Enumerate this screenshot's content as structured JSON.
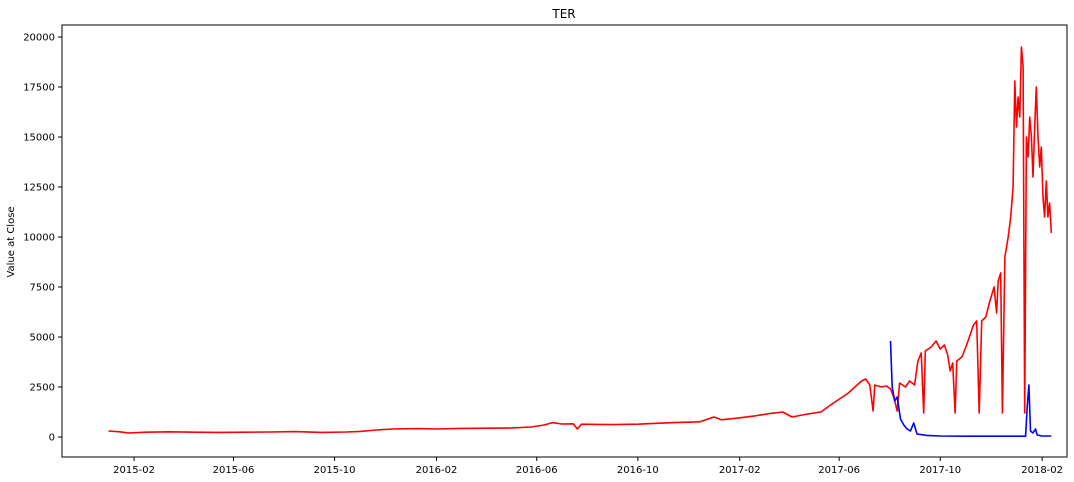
{
  "chart_data": {
    "type": "line",
    "title": "TER",
    "xlabel": "",
    "ylabel": "Value at Close",
    "x_range": [
      "2014-11-06",
      "2018-03-03"
    ],
    "ylim": [
      -1000,
      20600
    ],
    "x_ticks": [
      "2015-02",
      "2015-06",
      "2015-10",
      "2016-02",
      "2016-06",
      "2016-10",
      "2017-02",
      "2017-06",
      "2017-10",
      "2018-02"
    ],
    "y_ticks": [
      0,
      2500,
      5000,
      7500,
      10000,
      12500,
      15000,
      17500,
      20000
    ],
    "grid": false,
    "legend": false,
    "series": [
      {
        "color": "#ff0000",
        "points": [
          [
            "2015-01-01",
            300
          ],
          [
            "2015-01-15",
            260
          ],
          [
            "2015-01-25",
            200
          ],
          [
            "2015-02-15",
            240
          ],
          [
            "2015-03-15",
            260
          ],
          [
            "2015-04-15",
            240
          ],
          [
            "2015-05-15",
            230
          ],
          [
            "2015-06-15",
            240
          ],
          [
            "2015-07-15",
            250
          ],
          [
            "2015-08-15",
            270
          ],
          [
            "2015-09-15",
            230
          ],
          [
            "2015-10-15",
            250
          ],
          [
            "2015-11-01",
            280
          ],
          [
            "2015-11-20",
            350
          ],
          [
            "2015-12-10",
            400
          ],
          [
            "2016-01-10",
            420
          ],
          [
            "2016-02-01",
            400
          ],
          [
            "2016-03-01",
            430
          ],
          [
            "2016-04-01",
            440
          ],
          [
            "2016-05-01",
            450
          ],
          [
            "2016-05-25",
            500
          ],
          [
            "2016-06-10",
            600
          ],
          [
            "2016-06-20",
            720
          ],
          [
            "2016-07-01",
            650
          ],
          [
            "2016-07-15",
            660
          ],
          [
            "2016-07-20",
            400
          ],
          [
            "2016-07-25",
            640
          ],
          [
            "2016-08-15",
            630
          ],
          [
            "2016-09-01",
            620
          ],
          [
            "2016-10-01",
            640
          ],
          [
            "2016-10-20",
            680
          ],
          [
            "2016-11-15",
            720
          ],
          [
            "2016-12-15",
            760
          ],
          [
            "2017-01-01",
            1000
          ],
          [
            "2017-01-10",
            860
          ],
          [
            "2017-02-01",
            960
          ],
          [
            "2017-02-20",
            1060
          ],
          [
            "2017-03-10",
            1180
          ],
          [
            "2017-03-25",
            1250
          ],
          [
            "2017-04-05",
            1000
          ],
          [
            "2017-04-20",
            1120
          ],
          [
            "2017-05-10",
            1250
          ],
          [
            "2017-05-25",
            1700
          ],
          [
            "2017-06-05",
            2000
          ],
          [
            "2017-06-12",
            2200
          ],
          [
            "2017-06-20",
            2500
          ],
          [
            "2017-06-28",
            2800
          ],
          [
            "2017-07-03",
            2900
          ],
          [
            "2017-07-08",
            2600
          ],
          [
            "2017-07-12",
            1300
          ],
          [
            "2017-07-14",
            2600
          ],
          [
            "2017-07-22",
            2500
          ],
          [
            "2017-07-28",
            2550
          ],
          [
            "2017-08-02",
            2400
          ],
          [
            "2017-08-06",
            2000
          ],
          [
            "2017-08-10",
            1300
          ],
          [
            "2017-08-13",
            2700
          ],
          [
            "2017-08-20",
            2500
          ],
          [
            "2017-08-25",
            2800
          ],
          [
            "2017-08-31",
            2600
          ],
          [
            "2017-09-04",
            3800
          ],
          [
            "2017-09-08",
            4200
          ],
          [
            "2017-09-11",
            1200
          ],
          [
            "2017-09-13",
            4300
          ],
          [
            "2017-09-20",
            4500
          ],
          [
            "2017-09-26",
            4800
          ],
          [
            "2017-10-01",
            4400
          ],
          [
            "2017-10-06",
            4600
          ],
          [
            "2017-10-10",
            4100
          ],
          [
            "2017-10-13",
            3300
          ],
          [
            "2017-10-16",
            3700
          ],
          [
            "2017-10-19",
            1200
          ],
          [
            "2017-10-21",
            3800
          ],
          [
            "2017-10-27",
            4000
          ],
          [
            "2017-11-01",
            4500
          ],
          [
            "2017-11-06",
            5100
          ],
          [
            "2017-11-10",
            5600
          ],
          [
            "2017-11-14",
            5800
          ],
          [
            "2017-11-17",
            1200
          ],
          [
            "2017-11-20",
            5800
          ],
          [
            "2017-11-25",
            6000
          ],
          [
            "2017-11-30",
            6800
          ],
          [
            "2017-12-05",
            7500
          ],
          [
            "2017-12-08",
            6200
          ],
          [
            "2017-12-10",
            7800
          ],
          [
            "2017-12-13",
            8200
          ],
          [
            "2017-12-15",
            1200
          ],
          [
            "2017-12-18",
            9000
          ],
          [
            "2017-12-22",
            10000
          ],
          [
            "2017-12-25",
            11000
          ],
          [
            "2017-12-28",
            12500
          ],
          [
            "2017-12-30",
            17800
          ],
          [
            "2018-01-01",
            15500
          ],
          [
            "2018-01-03",
            17000
          ],
          [
            "2018-01-05",
            16000
          ],
          [
            "2018-01-07",
            19500
          ],
          [
            "2018-01-09",
            18500
          ],
          [
            "2018-01-11",
            1200
          ],
          [
            "2018-01-13",
            15000
          ],
          [
            "2018-01-15",
            14000
          ],
          [
            "2018-01-17",
            16000
          ],
          [
            "2018-01-19",
            15000
          ],
          [
            "2018-01-21",
            13000
          ],
          [
            "2018-01-23",
            15500
          ],
          [
            "2018-01-25",
            17500
          ],
          [
            "2018-01-27",
            15000
          ],
          [
            "2018-01-29",
            13500
          ],
          [
            "2018-01-31",
            14500
          ],
          [
            "2018-02-02",
            12000
          ],
          [
            "2018-02-04",
            11000
          ],
          [
            "2018-02-06",
            12800
          ],
          [
            "2018-02-08",
            11000
          ],
          [
            "2018-02-10",
            11700
          ],
          [
            "2018-02-12",
            10200
          ]
        ]
      },
      {
        "color": "#0000ff",
        "points": [
          [
            "2017-08-02",
            4800
          ],
          [
            "2017-08-04",
            2500
          ],
          [
            "2017-08-07",
            1800
          ],
          [
            "2017-08-10",
            2000
          ],
          [
            "2017-08-14",
            900
          ],
          [
            "2017-08-18",
            600
          ],
          [
            "2017-08-22",
            400
          ],
          [
            "2017-08-26",
            300
          ],
          [
            "2017-08-30",
            700
          ],
          [
            "2017-09-03",
            150
          ],
          [
            "2017-09-15",
            80
          ],
          [
            "2017-10-01",
            50
          ],
          [
            "2017-11-01",
            40
          ],
          [
            "2017-12-01",
            40
          ],
          [
            "2018-01-01",
            40
          ],
          [
            "2018-01-12",
            40
          ],
          [
            "2018-01-14",
            1500
          ],
          [
            "2018-01-16",
            2600
          ],
          [
            "2018-01-18",
            300
          ],
          [
            "2018-01-21",
            200
          ],
          [
            "2018-01-24",
            400
          ],
          [
            "2018-01-26",
            100
          ],
          [
            "2018-02-01",
            50
          ],
          [
            "2018-02-12",
            50
          ]
        ]
      }
    ]
  }
}
